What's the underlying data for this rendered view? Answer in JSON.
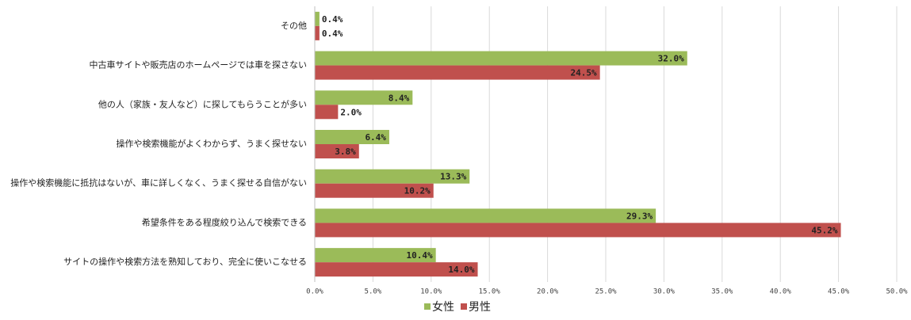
{
  "chart_data": {
    "type": "hbar",
    "categories": [
      "その他",
      "中古車サイトや販売店のホームページでは車を探さない",
      "他の人（家族・友人など）に探してもらうことが多い",
      "操作や検索機能がよくわからず、うまく探せない",
      "操作や検索機能に抵抗はないが、車に詳しくなく、うまく探せる自信がない",
      "希望条件をある程度絞り込んで検索できる",
      "サイトの操作や検索方法を熟知しており、完全に使いこなせる"
    ],
    "series": [
      {
        "name": "女性",
        "color": "#9bbb59",
        "values": [
          0.4,
          32.0,
          8.4,
          6.4,
          13.3,
          29.3,
          10.4
        ],
        "value_labels": [
          "0.4%",
          "32.0%",
          "8.4%",
          "6.4%",
          "13.3%",
          "29.3%",
          "10.4%"
        ]
      },
      {
        "name": "男性",
        "color": "#c0504d",
        "values": [
          0.4,
          24.5,
          2.0,
          3.8,
          10.2,
          45.2,
          14.0
        ],
        "value_labels": [
          "0.4%",
          "24.5%",
          "2.0%",
          "3.8%",
          "10.2%",
          "45.2%",
          "14.0%"
        ]
      }
    ],
    "xlim": [
      0,
      50
    ],
    "xticks": [
      {
        "value": 0,
        "label": "0.0%"
      },
      {
        "value": 5,
        "label": "5.0%"
      },
      {
        "value": 10,
        "label": "10.0%"
      },
      {
        "value": 15,
        "label": "15.0%"
      },
      {
        "value": 20,
        "label": "20.0%"
      },
      {
        "value": 25,
        "label": "25.0%"
      },
      {
        "value": 30,
        "label": "30.0%"
      },
      {
        "value": 35,
        "label": "35.0%"
      },
      {
        "value": 40,
        "label": "40.0%"
      },
      {
        "value": 45,
        "label": "45.0%"
      },
      {
        "value": 50,
        "label": "50.0%"
      }
    ],
    "grid": true
  }
}
